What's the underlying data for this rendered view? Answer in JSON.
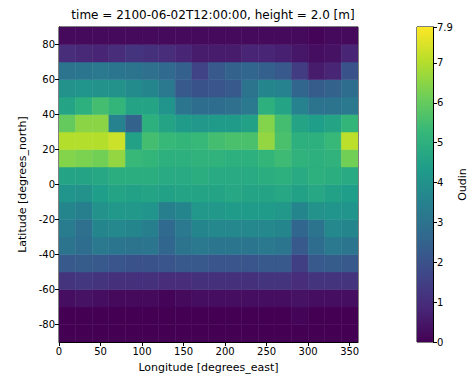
{
  "chart_data": {
    "type": "heatmap",
    "title": "time = 2100-06-02T12:00:00, height = 2.0 [m]",
    "xlabel": "Longitude [degrees_east]",
    "ylabel": "Latitude [degrees_north]",
    "xlim": [
      0,
      360
    ],
    "ylim": [
      -90,
      90
    ],
    "xticks": [
      0,
      50,
      100,
      150,
      200,
      250,
      300,
      350
    ],
    "yticks": [
      -80,
      -60,
      -40,
      -20,
      0,
      20,
      40,
      60,
      80
    ],
    "x_bins": [
      0,
      20,
      40,
      60,
      80,
      100,
      120,
      140,
      160,
      180,
      200,
      220,
      240,
      260,
      280,
      300,
      320,
      340,
      360
    ],
    "y_bins": [
      -90,
      -80,
      -70,
      -60,
      -50,
      -40,
      -30,
      -20,
      -10,
      0,
      10,
      20,
      30,
      40,
      50,
      60,
      70,
      80,
      90
    ],
    "values": [
      [
        0,
        0,
        0,
        0,
        0,
        0,
        0,
        0,
        0,
        0,
        0,
        0,
        0,
        0,
        0,
        0,
        0,
        0
      ],
      [
        0,
        0,
        0,
        0,
        0,
        0,
        0,
        0,
        0,
        0,
        0,
        0,
        0,
        0,
        0.1,
        0,
        0,
        0
      ],
      [
        0.3,
        0.4,
        0.3,
        0.2,
        0.2,
        0.2,
        0.1,
        0.2,
        0.3,
        0.3,
        0.3,
        0.3,
        0.3,
        0.3,
        0.4,
        0.3,
        0.3,
        0.3
      ],
      [
        1.2,
        1.3,
        1.2,
        1.1,
        1.1,
        1.1,
        1.0,
        1.0,
        1.1,
        1.1,
        1.1,
        1.1,
        1.2,
        1.2,
        1.0,
        1.2,
        1.2,
        1.2
      ],
      [
        2.2,
        2.3,
        2.2,
        2.1,
        2.0,
        2.0,
        2.1,
        2.2,
        2.2,
        2.1,
        2.1,
        2.1,
        2.2,
        2.2,
        1.5,
        2.2,
        2.3,
        2.2
      ],
      [
        3.0,
        2.8,
        3.2,
        3.1,
        3.0,
        3.1,
        2.6,
        3.0,
        3.2,
        3.1,
        3.1,
        3.1,
        3.2,
        3.1,
        2.2,
        2.8,
        3.2,
        3.1
      ],
      [
        3.3,
        2.9,
        3.6,
        3.7,
        3.6,
        3.4,
        2.7,
        3.2,
        3.6,
        3.7,
        3.7,
        3.7,
        3.7,
        3.6,
        2.6,
        3.0,
        3.7,
        3.6
      ],
      [
        3.6,
        3.4,
        4.0,
        4.2,
        4.2,
        4.1,
        3.4,
        3.6,
        4.2,
        4.2,
        4.3,
        4.3,
        4.3,
        4.2,
        3.6,
        4.0,
        4.1,
        4.1
      ],
      [
        4.1,
        4.0,
        4.4,
        4.6,
        4.5,
        4.6,
        4.5,
        4.6,
        4.6,
        4.6,
        4.7,
        4.6,
        4.6,
        4.7,
        4.5,
        4.7,
        4.5,
        4.4
      ],
      [
        4.6,
        4.6,
        4.7,
        4.9,
        4.9,
        4.9,
        4.8,
        4.8,
        4.9,
        4.8,
        4.8,
        4.8,
        4.9,
        5.0,
        4.8,
        5.0,
        4.9,
        4.8
      ],
      [
        6.4,
        6.3,
        6.2,
        6.6,
        5.3,
        5.2,
        5.0,
        5.0,
        5.1,
        5.1,
        5.0,
        5.0,
        5.2,
        5.4,
        5.1,
        5.0,
        5.1,
        6.2
      ],
      [
        7.0,
        7.0,
        7.0,
        7.3,
        4.5,
        5.5,
        5.3,
        5.2,
        5.3,
        5.5,
        5.6,
        5.6,
        6.6,
        5.6,
        5.0,
        5.0,
        5.3,
        7.1
      ],
      [
        6.0,
        6.5,
        6.5,
        3.5,
        2.5,
        5.0,
        4.6,
        4.3,
        4.2,
        4.3,
        4.3,
        4.5,
        6.4,
        5.5,
        4.6,
        4.4,
        4.6,
        5.2
      ],
      [
        4.6,
        5.0,
        5.5,
        5.2,
        4.6,
        4.6,
        4.1,
        3.1,
        2.8,
        2.8,
        2.9,
        3.2,
        5.0,
        4.6,
        3.5,
        3.0,
        3.0,
        3.2
      ],
      [
        4.0,
        4.1,
        4.0,
        4.0,
        3.8,
        3.6,
        3.2,
        2.2,
        2.0,
        2.1,
        2.2,
        3.0,
        3.6,
        3.5,
        2.6,
        2.3,
        2.5,
        2.8
      ],
      [
        3.0,
        3.1,
        3.2,
        3.1,
        3.0,
        2.9,
        2.7,
        2.4,
        1.6,
        2.2,
        2.5,
        2.6,
        2.4,
        2.2,
        1.4,
        0.6,
        0.8,
        2.0
      ],
      [
        1.0,
        0.9,
        0.8,
        1.0,
        1.2,
        1.1,
        1.0,
        0.8,
        0.6,
        0.6,
        0.6,
        0.8,
        0.8,
        0.7,
        0.5,
        0.3,
        0.4,
        0.8
      ],
      [
        0.2,
        0.2,
        0.2,
        0.2,
        0.2,
        0.2,
        0.2,
        0.2,
        0.2,
        0.2,
        0.2,
        0.2,
        0.2,
        0.2,
        0.2,
        0.1,
        0.2,
        0.2
      ]
    ],
    "colorbar": {
      "label": "Oudin",
      "range": [
        0,
        7.9
      ],
      "ticks": [
        0,
        1,
        2,
        3,
        4,
        5,
        6,
        7
      ]
    }
  }
}
